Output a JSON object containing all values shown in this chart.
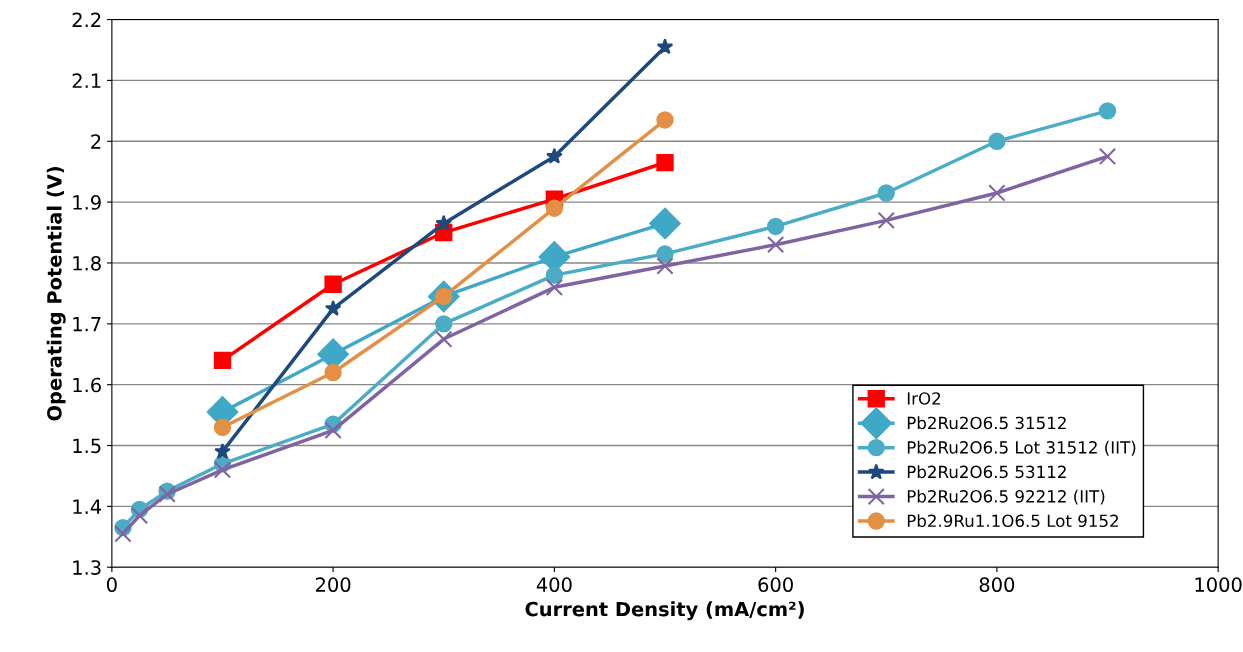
{
  "chart_data": {
    "type": "line",
    "xlabel": "Current Density (mA/cm²)",
    "ylabel": "Operating Potential (V)",
    "xlim": [
      0,
      1000
    ],
    "xticks": [
      0,
      200,
      400,
      600,
      800,
      1000
    ],
    "ylim": [
      1.3,
      2.2
    ],
    "yticks": [
      1.3,
      1.4,
      1.5,
      1.6,
      1.7,
      1.8,
      1.9,
      2,
      2.1,
      2.2
    ],
    "grid": "y",
    "legend": "bottom right",
    "line_style": "solid",
    "series": [
      {
        "name": "IrO2",
        "color": "#ff0000",
        "marker": "square",
        "x": [
          100,
          200,
          300,
          400,
          500
        ],
        "values": [
          1.64,
          1.765,
          1.85,
          1.905,
          1.965
        ]
      },
      {
        "name": "Pb2Ru2O6.5 31512",
        "color": "#3fa8c6",
        "marker": "diamond",
        "x": [
          100,
          200,
          300,
          400,
          500
        ],
        "values": [
          1.555,
          1.65,
          1.745,
          1.81,
          1.865
        ]
      },
      {
        "name": "Pb2Ru2O6.5 Lot 31512 (IIT)",
        "color": "#4bacc6",
        "marker": "circle",
        "x": [
          10,
          25,
          50,
          100,
          200,
          300,
          400,
          500,
          600,
          700,
          800,
          900
        ],
        "values": [
          1.365,
          1.395,
          1.425,
          1.47,
          1.535,
          1.7,
          1.78,
          1.815,
          1.86,
          1.915,
          2.0,
          2.05
        ]
      },
      {
        "name": "Pb2Ru2O6.5 53112",
        "color": "#1f497d",
        "marker": "star",
        "x": [
          100,
          200,
          300,
          400,
          500
        ],
        "values": [
          1.49,
          1.725,
          1.865,
          1.975,
          2.155
        ]
      },
      {
        "name": "Pb2Ru2O6.5 92212 (IIT)",
        "color": "#8064a2",
        "marker": "cross",
        "x": [
          10,
          25,
          50,
          100,
          200,
          300,
          400,
          500,
          600,
          700,
          800,
          900
        ],
        "values": [
          1.355,
          1.385,
          1.42,
          1.46,
          1.525,
          1.675,
          1.76,
          1.795,
          1.83,
          1.87,
          1.915,
          1.975
        ]
      },
      {
        "name": "Pb2.9Ru1.1O6.5 Lot 9152",
        "color": "#e38f45",
        "marker": "circle",
        "x": [
          100,
          200,
          300,
          400,
          500
        ],
        "values": [
          1.53,
          1.62,
          1.745,
          1.89,
          2.035
        ]
      }
    ]
  }
}
